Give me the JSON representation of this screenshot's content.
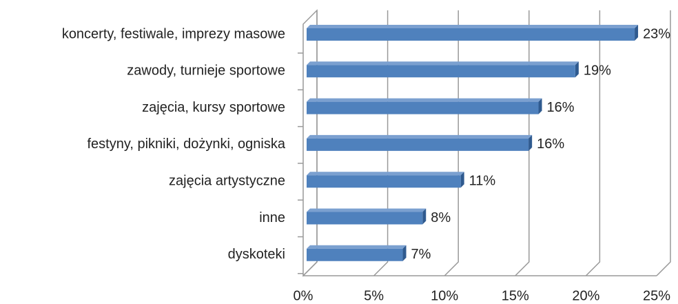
{
  "chart_data": {
    "type": "bar",
    "orientation": "horizontal",
    "categories": [
      "koncerty, festiwale, imprezy masowe",
      "zawody, turnieje sportowe",
      "zajęcia, kursy sportowe",
      "festyny, pikniki, dożynki, ogniska",
      "zajęcia artystyczne",
      "inne",
      "dyskoteki"
    ],
    "values": [
      23.2,
      19.0,
      16.4,
      15.7,
      10.9,
      8.2,
      6.8
    ],
    "value_labels": [
      "23%",
      "19%",
      "16%",
      "16%",
      "11%",
      "8%",
      "7%"
    ],
    "color": "#4f81bd",
    "xlim": [
      0,
      25
    ],
    "xticks": [
      {
        "value": 0,
        "label": "0%"
      },
      {
        "value": 5,
        "label": "5%"
      },
      {
        "value": 10,
        "label": "10%"
      },
      {
        "value": 15,
        "label": "15%"
      },
      {
        "value": 20,
        "label": "20%"
      },
      {
        "value": 25,
        "label": "25%"
      }
    ],
    "grid": true
  }
}
